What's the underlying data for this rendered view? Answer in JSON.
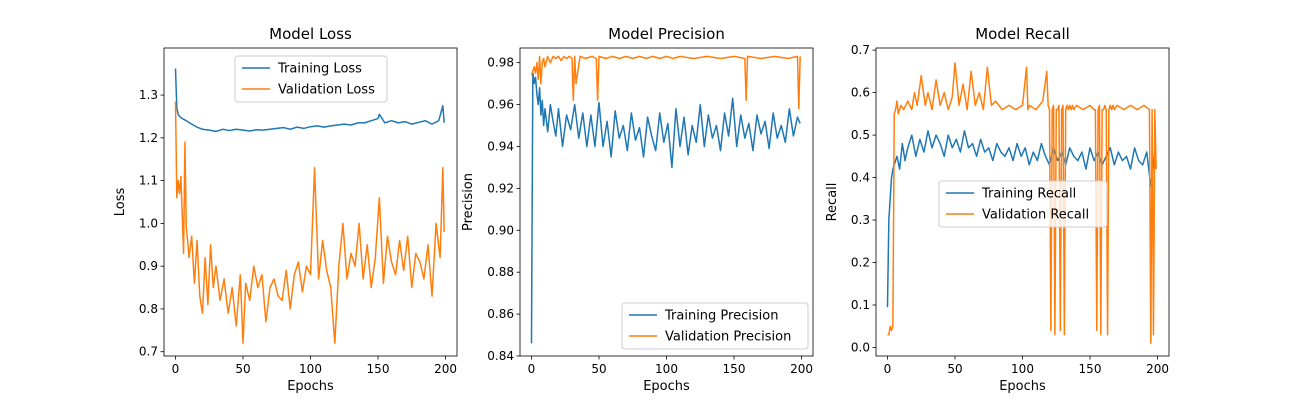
{
  "chart_data": [
    {
      "type": "line",
      "title": "Model Loss",
      "xlabel": "Epochs",
      "ylabel": "Loss",
      "xlim": [
        -8.5,
        208.5
      ],
      "ylim": [
        0.69,
        1.41
      ],
      "xticks": [
        0,
        50,
        100,
        150,
        200
      ],
      "yticks": [
        0.7,
        0.8,
        0.9,
        1.0,
        1.1,
        1.2,
        1.3
      ],
      "legend_position": "top-center",
      "series": [
        {
          "name": "Training Loss",
          "color": "#1f77b4",
          "x": [
            0,
            1,
            2,
            3,
            5,
            8,
            12,
            16,
            20,
            25,
            30,
            35,
            40,
            45,
            50,
            55,
            60,
            65,
            70,
            75,
            80,
            85,
            90,
            95,
            100,
            105,
            110,
            115,
            120,
            125,
            130,
            135,
            140,
            145,
            150,
            151,
            155,
            160,
            165,
            170,
            175,
            180,
            185,
            190,
            195,
            198,
            199
          ],
          "y": [
            1.362,
            1.27,
            1.255,
            1.25,
            1.245,
            1.24,
            1.232,
            1.225,
            1.22,
            1.218,
            1.215,
            1.22,
            1.217,
            1.22,
            1.218,
            1.216,
            1.219,
            1.218,
            1.22,
            1.222,
            1.224,
            1.22,
            1.225,
            1.222,
            1.226,
            1.228,
            1.225,
            1.228,
            1.23,
            1.232,
            1.23,
            1.235,
            1.235,
            1.24,
            1.245,
            1.255,
            1.235,
            1.24,
            1.235,
            1.238,
            1.232,
            1.236,
            1.24,
            1.232,
            1.24,
            1.275,
            1.235
          ]
        },
        {
          "name": "Validation Loss",
          "color": "#ff7f0e",
          "x": [
            0,
            1,
            2,
            3,
            4,
            5,
            6,
            7,
            8,
            9,
            10,
            12,
            14,
            16,
            18,
            20,
            22,
            24,
            26,
            28,
            30,
            33,
            36,
            39,
            42,
            45,
            48,
            50,
            52,
            55,
            58,
            61,
            64,
            67,
            70,
            73,
            76,
            79,
            82,
            85,
            88,
            91,
            94,
            97,
            100,
            103,
            106,
            109,
            112,
            115,
            118,
            121,
            124,
            127,
            130,
            133,
            136,
            139,
            142,
            145,
            148,
            151,
            154,
            157,
            160,
            163,
            166,
            169,
            172,
            175,
            178,
            181,
            184,
            187,
            190,
            193,
            196,
            198,
            199
          ],
          "y": [
            1.285,
            1.06,
            1.1,
            1.07,
            1.11,
            1.02,
            0.93,
            1.19,
            0.99,
            0.96,
            0.92,
            0.97,
            0.86,
            0.96,
            0.83,
            0.79,
            0.92,
            0.81,
            0.95,
            0.85,
            0.9,
            0.82,
            0.87,
            0.79,
            0.85,
            0.76,
            0.88,
            0.72,
            0.86,
            0.82,
            0.9,
            0.85,
            0.88,
            0.77,
            0.85,
            0.87,
            0.83,
            0.82,
            0.89,
            0.8,
            0.88,
            0.91,
            0.84,
            0.9,
            0.88,
            1.13,
            0.87,
            0.96,
            0.89,
            0.85,
            0.72,
            0.9,
            1.0,
            0.87,
            0.93,
            0.9,
            1.0,
            0.87,
            0.95,
            0.85,
            0.92,
            1.06,
            0.86,
            0.97,
            0.91,
            0.88,
            0.96,
            0.89,
            0.97,
            0.85,
            0.93,
            0.91,
            0.87,
            0.95,
            0.83,
            1.0,
            0.92,
            1.13,
            0.98
          ]
        }
      ]
    },
    {
      "type": "line",
      "title": "Model Precision",
      "xlabel": "Epochs",
      "ylabel": "Precision",
      "xlim": [
        -8.5,
        208.5
      ],
      "ylim": [
        0.84,
        0.987
      ],
      "xticks": [
        0,
        50,
        100,
        150,
        200
      ],
      "yticks": [
        0.84,
        0.86,
        0.88,
        0.9,
        0.92,
        0.94,
        0.96,
        0.98
      ],
      "legend_position": "bottom-right",
      "series": [
        {
          "name": "Training Precision",
          "color": "#1f77b4",
          "x": [
            0,
            1,
            2,
            3,
            4,
            5,
            6,
            7,
            8,
            9,
            10,
            12,
            14,
            16,
            18,
            20,
            23,
            26,
            29,
            32,
            35,
            38,
            41,
            44,
            47,
            50,
            53,
            56,
            59,
            62,
            65,
            68,
            71,
            74,
            77,
            80,
            83,
            86,
            89,
            92,
            95,
            98,
            101,
            104,
            107,
            110,
            113,
            116,
            119,
            122,
            125,
            128,
            131,
            134,
            137,
            140,
            143,
            146,
            149,
            152,
            155,
            158,
            161,
            164,
            167,
            170,
            173,
            176,
            179,
            182,
            185,
            188,
            191,
            194,
            197,
            199
          ],
          "y": [
            0.846,
            0.975,
            0.97,
            0.973,
            0.965,
            0.96,
            0.968,
            0.955,
            0.962,
            0.95,
            0.958,
            0.947,
            0.96,
            0.952,
            0.945,
            0.958,
            0.94,
            0.955,
            0.948,
            0.96,
            0.944,
            0.956,
            0.94,
            0.955,
            0.94,
            0.961,
            0.94,
            0.952,
            0.935,
            0.957,
            0.944,
            0.95,
            0.938,
            0.956,
            0.943,
            0.949,
            0.935,
            0.954,
            0.945,
            0.938,
            0.956,
            0.942,
            0.951,
            0.93,
            0.958,
            0.94,
            0.954,
            0.936,
            0.95,
            0.942,
            0.96,
            0.94,
            0.955,
            0.944,
            0.95,
            0.938,
            0.956,
            0.945,
            0.963,
            0.94,
            0.955,
            0.944,
            0.951,
            0.938,
            0.955,
            0.946,
            0.952,
            0.939,
            0.956,
            0.944,
            0.95,
            0.942,
            0.958,
            0.945,
            0.954,
            0.951
          ]
        },
        {
          "name": "Validation Precision",
          "color": "#ff7f0e",
          "x": [
            0,
            1,
            2,
            3,
            4,
            5,
            6,
            7,
            8,
            9,
            10,
            12,
            14,
            16,
            18,
            20,
            22,
            24,
            26,
            28,
            30,
            31,
            32,
            33,
            36,
            40,
            45,
            48,
            49,
            50,
            55,
            60,
            65,
            70,
            75,
            80,
            85,
            90,
            95,
            100,
            105,
            110,
            120,
            130,
            140,
            150,
            158,
            159,
            160,
            170,
            180,
            190,
            197,
            198,
            199
          ],
          "y": [
            0.974,
            0.976,
            0.978,
            0.975,
            0.98,
            0.972,
            0.983,
            0.97,
            0.98,
            0.982,
            0.978,
            0.983,
            0.98,
            0.983,
            0.982,
            0.983,
            0.981,
            0.983,
            0.982,
            0.983,
            0.982,
            0.962,
            0.983,
            0.97,
            0.983,
            0.982,
            0.983,
            0.982,
            0.962,
            0.983,
            0.982,
            0.983,
            0.982,
            0.983,
            0.982,
            0.983,
            0.982,
            0.983,
            0.982,
            0.983,
            0.982,
            0.983,
            0.982,
            0.983,
            0.982,
            0.983,
            0.982,
            0.962,
            0.983,
            0.982,
            0.983,
            0.982,
            0.983,
            0.958,
            0.983
          ]
        }
      ]
    },
    {
      "type": "line",
      "title": "Model Recall",
      "xlabel": "Epochs",
      "ylabel": "Recall",
      "xlim": [
        -8.5,
        208.5
      ],
      "ylim": [
        -0.02,
        0.705
      ],
      "xticks": [
        0,
        50,
        100,
        150,
        200
      ],
      "yticks": [
        0.0,
        0.1,
        0.2,
        0.3,
        0.4,
        0.5,
        0.6,
        0.7
      ],
      "legend_position": "center-right",
      "series": [
        {
          "name": "Training Recall",
          "color": "#1f77b4",
          "x": [
            0,
            1,
            2,
            3,
            4,
            5,
            7,
            9,
            11,
            13,
            15,
            18,
            21,
            24,
            27,
            30,
            33,
            36,
            39,
            42,
            45,
            48,
            51,
            54,
            57,
            60,
            63,
            66,
            69,
            72,
            75,
            78,
            81,
            84,
            87,
            90,
            93,
            96,
            99,
            102,
            105,
            108,
            111,
            114,
            117,
            120,
            123,
            126,
            129,
            132,
            135,
            138,
            141,
            144,
            147,
            150,
            153,
            156,
            159,
            162,
            165,
            168,
            171,
            174,
            177,
            180,
            183,
            186,
            189,
            192,
            195,
            198,
            199
          ],
          "y": [
            0.095,
            0.3,
            0.35,
            0.4,
            0.42,
            0.43,
            0.45,
            0.42,
            0.48,
            0.44,
            0.47,
            0.5,
            0.45,
            0.49,
            0.46,
            0.51,
            0.47,
            0.5,
            0.48,
            0.45,
            0.5,
            0.47,
            0.49,
            0.46,
            0.51,
            0.47,
            0.48,
            0.45,
            0.49,
            0.46,
            0.47,
            0.44,
            0.48,
            0.46,
            0.45,
            0.47,
            0.44,
            0.48,
            0.45,
            0.47,
            0.43,
            0.46,
            0.44,
            0.48,
            0.45,
            0.43,
            0.47,
            0.44,
            0.46,
            0.43,
            0.47,
            0.45,
            0.44,
            0.46,
            0.42,
            0.47,
            0.44,
            0.46,
            0.43,
            0.45,
            0.47,
            0.43,
            0.46,
            0.44,
            0.45,
            0.42,
            0.47,
            0.44,
            0.43,
            0.46,
            0.38,
            0.46,
            0.42
          ]
        },
        {
          "name": "Validation Recall",
          "color": "#ff7f0e",
          "x": [
            0,
            1,
            2,
            3,
            4,
            5,
            6,
            7,
            8,
            10,
            12,
            15,
            18,
            20,
            22,
            25,
            28,
            30,
            33,
            36,
            39,
            42,
            45,
            48,
            50,
            53,
            56,
            59,
            62,
            65,
            68,
            71,
            74,
            77,
            80,
            85,
            90,
            95,
            100,
            103,
            104,
            105,
            110,
            115,
            118,
            119,
            120,
            121,
            122,
            123,
            124,
            125,
            126,
            127,
            128,
            129,
            130,
            131,
            132,
            133,
            134,
            135,
            136,
            137,
            138,
            140,
            145,
            150,
            153,
            154,
            155,
            156,
            157,
            158,
            159,
            160,
            161,
            162,
            163,
            164,
            165,
            166,
            167,
            168,
            170,
            175,
            180,
            185,
            190,
            194,
            195,
            196,
            197,
            198,
            199
          ],
          "y": [
            0.03,
            0.03,
            0.05,
            0.04,
            0.05,
            0.55,
            0.56,
            0.58,
            0.55,
            0.57,
            0.56,
            0.58,
            0.56,
            0.6,
            0.57,
            0.64,
            0.57,
            0.6,
            0.56,
            0.63,
            0.57,
            0.6,
            0.56,
            0.59,
            0.67,
            0.57,
            0.62,
            0.56,
            0.65,
            0.57,
            0.6,
            0.56,
            0.66,
            0.57,
            0.58,
            0.56,
            0.57,
            0.56,
            0.57,
            0.66,
            0.56,
            0.57,
            0.56,
            0.58,
            0.65,
            0.57,
            0.56,
            0.04,
            0.56,
            0.57,
            0.03,
            0.56,
            0.56,
            0.57,
            0.04,
            0.56,
            0.57,
            0.03,
            0.56,
            0.57,
            0.56,
            0.57,
            0.56,
            0.57,
            0.56,
            0.57,
            0.56,
            0.57,
            0.56,
            0.56,
            0.04,
            0.56,
            0.57,
            0.03,
            0.56,
            0.56,
            0.57,
            0.56,
            0.03,
            0.56,
            0.57,
            0.56,
            0.57,
            0.56,
            0.57,
            0.56,
            0.57,
            0.56,
            0.57,
            0.56,
            0.01,
            0.56,
            0.03,
            0.56,
            0.42
          ]
        }
      ]
    }
  ]
}
